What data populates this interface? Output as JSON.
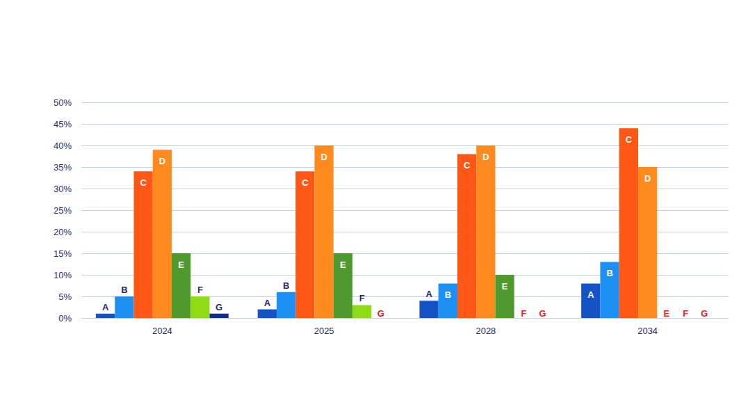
{
  "chart_data": {
    "type": "bar",
    "categories": [
      "2024",
      "2025",
      "2028",
      "2034"
    ],
    "series": [
      {
        "name": "A",
        "color": "#1552c4",
        "values": [
          1,
          2,
          4,
          8
        ]
      },
      {
        "name": "B",
        "color": "#1e90f5",
        "values": [
          5,
          6,
          8,
          13
        ]
      },
      {
        "name": "C",
        "color": "#ff5716",
        "values": [
          34,
          34,
          38,
          44
        ]
      },
      {
        "name": "D",
        "color": "#ff8a1e",
        "values": [
          39,
          40,
          40,
          35
        ]
      },
      {
        "name": "E",
        "color": "#4e9a2f",
        "values": [
          15,
          15,
          10,
          0
        ]
      },
      {
        "name": "F",
        "color": "#8fdc14",
        "values": [
          5,
          3,
          0,
          0
        ]
      },
      {
        "name": "G",
        "color": "#0f2f86",
        "values": [
          1,
          0,
          0,
          0
        ]
      }
    ],
    "ylim": [
      0,
      50
    ],
    "yticks": [
      {
        "value": 0,
        "label": "0%"
      },
      {
        "value": 5,
        "label": "5%"
      },
      {
        "value": 10,
        "label": "10%"
      },
      {
        "value": 15,
        "label": "15%"
      },
      {
        "value": 20,
        "label": "20%"
      },
      {
        "value": 25,
        "label": "25%"
      },
      {
        "value": 30,
        "label": "30%"
      },
      {
        "value": 35,
        "label": "35%"
      },
      {
        "value": 40,
        "label": "40%"
      },
      {
        "value": 45,
        "label": "45%"
      },
      {
        "value": 50,
        "label": "50%"
      }
    ],
    "grid": true
  }
}
